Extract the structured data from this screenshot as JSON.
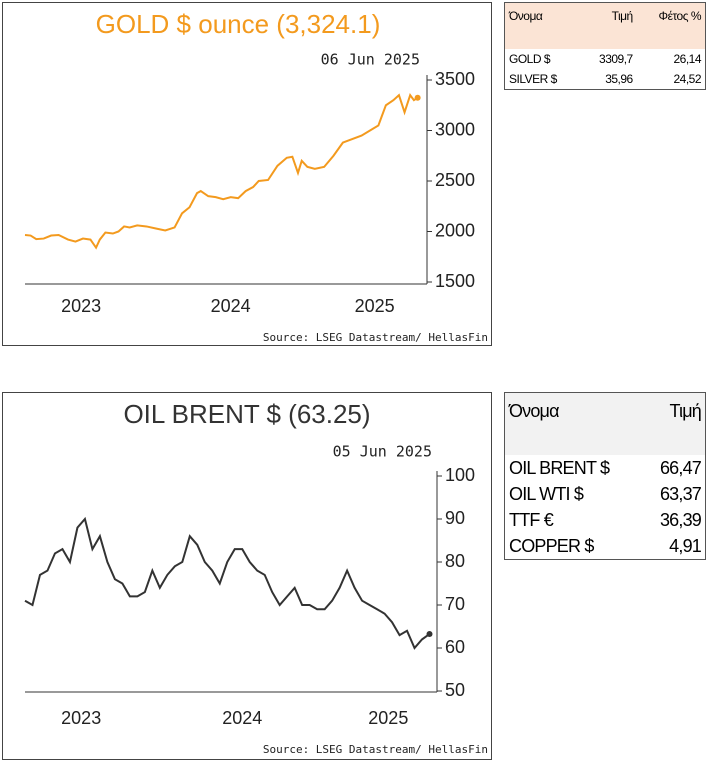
{
  "chart_data": [
    {
      "type": "line",
      "title": "GOLD $ ounce (3,324.1)",
      "date": "06 Jun 2025",
      "source": "Source: LSEG Datastream/ HellasFin",
      "color": "#f39a1e",
      "title_color": "#f39a1e",
      "x": [
        2023.4,
        2023.43,
        2023.46,
        2023.5,
        2023.54,
        2023.58,
        2023.63,
        2023.67,
        2023.71,
        2023.75,
        2023.78,
        2023.8,
        2023.83,
        2023.87,
        2023.9,
        2023.93,
        2023.96,
        2024.0,
        2024.05,
        2024.1,
        2024.15,
        2024.2,
        2024.24,
        2024.28,
        2024.32,
        2024.34,
        2024.38,
        2024.42,
        2024.46,
        2024.5,
        2024.54,
        2024.58,
        2024.62,
        2024.65,
        2024.7,
        2024.75,
        2024.8,
        2024.83,
        2024.86,
        2024.88,
        2024.91,
        2024.95,
        2025.0,
        2025.05,
        2025.1,
        2025.2,
        2025.29,
        2025.33,
        2025.37,
        2025.4,
        2025.43,
        2025.46,
        2025.48,
        2025.5
      ],
      "values": [
        1965,
        1960,
        1925,
        1930,
        1960,
        1965,
        1920,
        1900,
        1930,
        1920,
        1840,
        1920,
        1990,
        1980,
        2000,
        2050,
        2040,
        2060,
        2050,
        2030,
        2010,
        2040,
        2180,
        2240,
        2380,
        2400,
        2350,
        2340,
        2320,
        2340,
        2330,
        2400,
        2440,
        2500,
        2510,
        2650,
        2730,
        2740,
        2580,
        2700,
        2640,
        2620,
        2640,
        2750,
        2880,
        2950,
        3050,
        3250,
        3300,
        3350,
        3180,
        3350,
        3300,
        3324.1
      ],
      "xlim": [
        2023.4,
        2025.55
      ],
      "xticks": [
        {
          "value": 2023.7,
          "label": "2023"
        },
        {
          "value": 2024.5,
          "label": "2024"
        },
        {
          "value": 2025.27,
          "label": "2025"
        }
      ],
      "ylim": [
        1500,
        3500
      ],
      "yticks": [
        1500,
        2000,
        2500,
        3000,
        3500
      ],
      "y_axis": "right"
    },
    {
      "type": "line",
      "title": "OIL BRENT $ (63.25)",
      "date": "05 Jun 2025",
      "source": "Source: LSEG Datastream/ HellasFin",
      "color": "#333333",
      "title_color": "#333333",
      "x": [
        2023.36,
        2023.4,
        2023.44,
        2023.48,
        2023.52,
        2023.56,
        2023.6,
        2023.64,
        2023.68,
        2023.72,
        2023.76,
        2023.8,
        2023.84,
        2023.88,
        2023.92,
        2023.96,
        2024.0,
        2024.04,
        2024.08,
        2024.12,
        2024.16,
        2024.2,
        2024.24,
        2024.28,
        2024.32,
        2024.36,
        2024.4,
        2024.44,
        2024.48,
        2024.52,
        2024.56,
        2024.6,
        2024.64,
        2024.68,
        2024.72,
        2024.76,
        2024.8,
        2024.84,
        2024.88,
        2024.92,
        2024.96,
        2025.0,
        2025.04,
        2025.08,
        2025.12,
        2025.16,
        2025.2,
        2025.24,
        2025.28,
        2025.32,
        2025.36,
        2025.4,
        2025.44,
        2025.48,
        2025.52
      ],
      "values": [
        71,
        70,
        77,
        78,
        82,
        83,
        80,
        88,
        90,
        83,
        86,
        80,
        76,
        75,
        72,
        72,
        73,
        78,
        74,
        77,
        79,
        80,
        86,
        84,
        80,
        78,
        75,
        80,
        83,
        83,
        80,
        78,
        77,
        73,
        70,
        72,
        74,
        70,
        70,
        69,
        69,
        71,
        74,
        78,
        74,
        71,
        70,
        69,
        68,
        66,
        63,
        64,
        60,
        62,
        63.25
      ],
      "xlim": [
        2023.36,
        2025.56
      ],
      "xticks": [
        {
          "value": 2023.66,
          "label": "2023"
        },
        {
          "value": 2024.52,
          "label": "2024"
        },
        {
          "value": 2025.3,
          "label": "2025"
        }
      ],
      "ylim": [
        50,
        100
      ],
      "yticks": [
        50,
        60,
        70,
        80,
        90,
        100
      ],
      "y_axis": "right"
    }
  ],
  "tables": [
    {
      "header": [
        "Όνομα",
        "Τιμή",
        "Φέτος %"
      ],
      "rows": [
        [
          "GOLD $",
          "3309,7",
          "26,14"
        ],
        [
          "SILVER $",
          "35,96",
          "24,52"
        ]
      ]
    },
    {
      "header": [
        "Όνομα",
        "Τιμή"
      ],
      "rows": [
        [
          "OIL BRENT $",
          "66,47"
        ],
        [
          "OIL WTI $",
          "63,37"
        ],
        [
          "TTF €",
          "36,39"
        ],
        [
          "COPPER $",
          "4,91"
        ]
      ]
    }
  ]
}
